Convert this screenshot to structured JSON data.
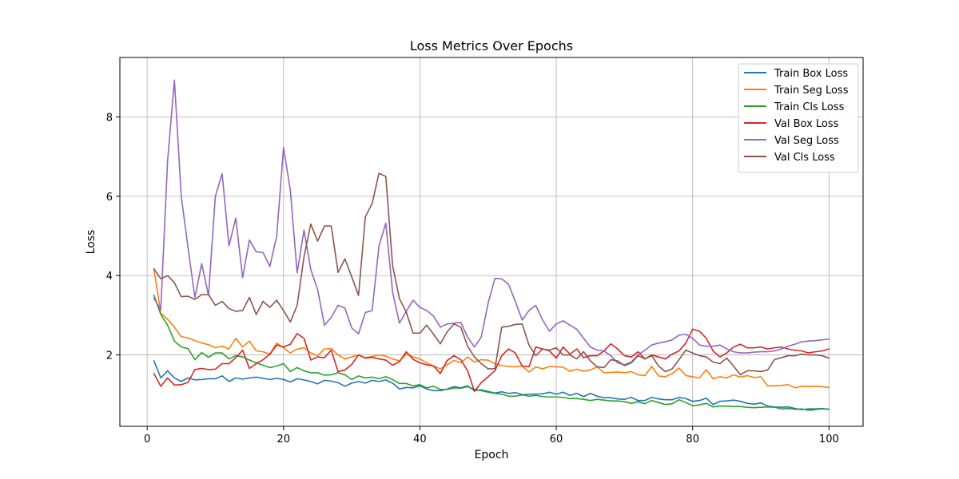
{
  "chart_data": {
    "type": "line",
    "title": "Loss Metrics Over Epochs",
    "xlabel": "Epoch",
    "ylabel": "Loss",
    "xlim": [
      -4,
      105
    ],
    "ylim": [
      0.2,
      9.5
    ],
    "xticks": [
      0,
      20,
      40,
      60,
      80,
      100
    ],
    "yticks": [
      2,
      4,
      6,
      8
    ],
    "grid": true,
    "legend_position": "top-right",
    "series": [
      {
        "name": "Train Box Loss",
        "color": "#1f77b4",
        "values": [
          1.85,
          1.42,
          1.6,
          1.42,
          1.33,
          1.42,
          1.37,
          1.38,
          1.4,
          1.4,
          1.47,
          1.33,
          1.42,
          1.39,
          1.42,
          1.44,
          1.41,
          1.38,
          1.41,
          1.38,
          1.32,
          1.4,
          1.37,
          1.33,
          1.27,
          1.36,
          1.34,
          1.3,
          1.21,
          1.29,
          1.33,
          1.29,
          1.36,
          1.33,
          1.37,
          1.29,
          1.14,
          1.18,
          1.17,
          1.22,
          1.14,
          1.1,
          1.1,
          1.14,
          1.2,
          1.17,
          1.22,
          1.1,
          1.12,
          1.08,
          1.04,
          1.07,
          1.03,
          1.05,
          1.0,
          1.01,
          1.01,
          1.02,
          1.06,
          1.01,
          1.06,
          0.98,
          1.03,
          0.95,
          1.03,
          0.96,
          0.92,
          0.92,
          0.89,
          0.88,
          0.93,
          0.85,
          0.85,
          0.93,
          0.89,
          0.87,
          0.87,
          0.93,
          0.9,
          0.83,
          0.85,
          0.91,
          0.75,
          0.83,
          0.84,
          0.86,
          0.83,
          0.78,
          0.76,
          0.79,
          0.71,
          0.69,
          0.68,
          0.69,
          0.65,
          0.62,
          0.64,
          0.64,
          0.65,
          0.63
        ]
      },
      {
        "name": "Train Seg Loss",
        "color": "#ff7f0e",
        "values": [
          4.17,
          3.05,
          2.9,
          2.7,
          2.46,
          2.43,
          2.36,
          2.3,
          2.26,
          2.18,
          2.22,
          2.15,
          2.42,
          2.2,
          2.35,
          2.1,
          2.08,
          2.02,
          2.3,
          2.18,
          2.05,
          2.15,
          2.18,
          2.05,
          1.98,
          2.15,
          2.16,
          2.0,
          1.9,
          1.95,
          2.0,
          1.93,
          1.96,
          2.0,
          1.97,
          1.9,
          1.85,
          2.02,
          1.95,
          1.9,
          1.8,
          1.72,
          1.65,
          1.75,
          1.86,
          1.8,
          1.95,
          1.82,
          1.88,
          1.87,
          1.78,
          1.73,
          1.71,
          1.7,
          1.72,
          1.57,
          1.7,
          1.65,
          1.71,
          1.7,
          1.69,
          1.59,
          1.64,
          1.59,
          1.62,
          1.7,
          1.55,
          1.56,
          1.57,
          1.55,
          1.58,
          1.5,
          1.48,
          1.71,
          1.47,
          1.45,
          1.53,
          1.67,
          1.48,
          1.45,
          1.42,
          1.63,
          1.4,
          1.45,
          1.42,
          1.5,
          1.44,
          1.48,
          1.43,
          1.45,
          1.22,
          1.22,
          1.23,
          1.25,
          1.17,
          1.21,
          1.2,
          1.21,
          1.2,
          1.18
        ]
      },
      {
        "name": "Train Cls Loss",
        "color": "#2ca02c",
        "values": [
          3.5,
          3.02,
          2.75,
          2.35,
          2.2,
          2.16,
          1.88,
          2.06,
          1.94,
          2.05,
          2.05,
          1.9,
          1.98,
          1.95,
          1.87,
          1.8,
          1.74,
          1.68,
          1.72,
          1.78,
          1.58,
          1.68,
          1.6,
          1.55,
          1.55,
          1.49,
          1.5,
          1.55,
          1.5,
          1.38,
          1.47,
          1.42,
          1.44,
          1.4,
          1.45,
          1.38,
          1.28,
          1.28,
          1.22,
          1.25,
          1.17,
          1.21,
          1.13,
          1.13,
          1.17,
          1.16,
          1.2,
          1.13,
          1.1,
          1.06,
          1.03,
          1.01,
          0.96,
          0.96,
          0.99,
          0.96,
          0.98,
          0.95,
          0.94,
          0.94,
          0.93,
          0.9,
          0.9,
          0.88,
          0.85,
          0.88,
          0.86,
          0.84,
          0.84,
          0.82,
          0.78,
          0.82,
          0.77,
          0.85,
          0.8,
          0.75,
          0.77,
          0.87,
          0.8,
          0.72,
          0.74,
          0.78,
          0.69,
          0.71,
          0.71,
          0.7,
          0.7,
          0.68,
          0.67,
          0.68,
          0.69,
          0.68,
          0.64,
          0.65,
          0.63,
          0.64,
          0.6,
          0.62,
          0.64,
          0.63
        ]
      },
      {
        "name": "Val Box Loss",
        "color": "#d62728",
        "values": [
          1.53,
          1.21,
          1.42,
          1.24,
          1.25,
          1.31,
          1.63,
          1.66,
          1.63,
          1.64,
          1.78,
          1.78,
          1.93,
          2.12,
          1.66,
          1.78,
          1.88,
          2.02,
          2.25,
          2.2,
          2.27,
          2.54,
          2.42,
          1.87,
          1.95,
          1.93,
          2.12,
          1.58,
          1.62,
          1.76,
          2.0,
          1.92,
          1.94,
          1.9,
          1.87,
          1.74,
          1.83,
          2.08,
          1.89,
          1.8,
          1.75,
          1.72,
          1.53,
          1.86,
          1.98,
          1.88,
          1.6,
          1.08,
          1.3,
          1.45,
          1.6,
          1.98,
          2.15,
          2.05,
          1.72,
          1.7,
          2.2,
          2.15,
          2.1,
          1.92,
          2.2,
          2.02,
          2.15,
          1.93,
          1.98,
          1.98,
          2.1,
          2.28,
          2.15,
          1.98,
          1.95,
          2.08,
          1.9,
          2.0,
          1.95,
          1.9,
          2.02,
          2.1,
          2.3,
          2.65,
          2.6,
          2.42,
          2.1,
          1.95,
          2.05,
          2.2,
          2.27,
          2.18,
          2.18,
          2.2,
          2.15,
          2.18,
          2.2,
          2.15,
          2.12,
          2.1,
          2.05,
          2.08,
          2.1,
          2.15
        ]
      },
      {
        "name": "Val Seg Loss",
        "color": "#9467bd",
        "values": [
          3.42,
          3.15,
          6.9,
          8.93,
          6.0,
          4.7,
          3.45,
          4.3,
          3.5,
          6.0,
          6.57,
          4.75,
          5.45,
          3.95,
          4.9,
          4.6,
          4.58,
          4.23,
          5.0,
          7.23,
          6.15,
          4.07,
          5.15,
          4.15,
          3.65,
          2.75,
          2.95,
          3.25,
          3.18,
          2.68,
          2.53,
          3.07,
          3.12,
          4.75,
          5.32,
          3.58,
          2.8,
          3.1,
          3.38,
          3.2,
          3.12,
          2.98,
          2.7,
          2.78,
          2.8,
          2.82,
          2.45,
          2.2,
          2.45,
          3.3,
          3.93,
          3.92,
          3.78,
          3.35,
          2.88,
          3.12,
          3.25,
          2.88,
          2.6,
          2.78,
          2.86,
          2.75,
          2.65,
          2.42,
          2.2,
          2.12,
          2.1,
          1.98,
          1.8,
          1.75,
          1.82,
          2.0,
          2.12,
          2.25,
          2.3,
          2.33,
          2.38,
          2.5,
          2.52,
          2.42,
          2.25,
          2.22,
          2.22,
          2.25,
          2.15,
          2.08,
          2.05,
          2.05,
          2.07,
          2.08,
          2.08,
          2.1,
          2.15,
          2.22,
          2.27,
          2.33,
          2.35,
          2.36,
          2.38,
          2.4
        ]
      },
      {
        "name": "Val Cls Loss",
        "color": "#8c564b",
        "values": [
          4.17,
          3.92,
          4.0,
          3.82,
          3.47,
          3.48,
          3.4,
          3.52,
          3.52,
          3.25,
          3.35,
          3.17,
          3.1,
          3.12,
          3.45,
          3.02,
          3.35,
          3.2,
          3.38,
          3.12,
          2.83,
          3.25,
          4.47,
          5.3,
          4.87,
          5.25,
          5.25,
          4.08,
          4.42,
          3.97,
          3.5,
          5.48,
          5.82,
          6.58,
          6.5,
          4.25,
          3.42,
          3.08,
          2.55,
          2.55,
          2.75,
          2.52,
          2.28,
          2.58,
          2.78,
          2.7,
          2.22,
          1.95,
          1.78,
          1.65,
          1.65,
          2.7,
          2.72,
          2.77,
          2.78,
          2.25,
          1.98,
          2.15,
          2.12,
          2.18,
          2.0,
          2.0,
          1.9,
          2.08,
          1.85,
          1.7,
          1.68,
          1.88,
          1.85,
          1.73,
          1.8,
          1.98,
          1.9,
          1.98,
          1.72,
          1.58,
          1.65,
          1.88,
          2.12,
          2.05,
          1.98,
          1.95,
          1.82,
          1.78,
          1.92,
          1.72,
          1.5,
          1.6,
          1.6,
          1.58,
          1.62,
          1.88,
          1.93,
          1.98,
          1.98,
          2.02,
          2.0,
          2.0,
          1.98,
          1.92
        ]
      }
    ]
  }
}
